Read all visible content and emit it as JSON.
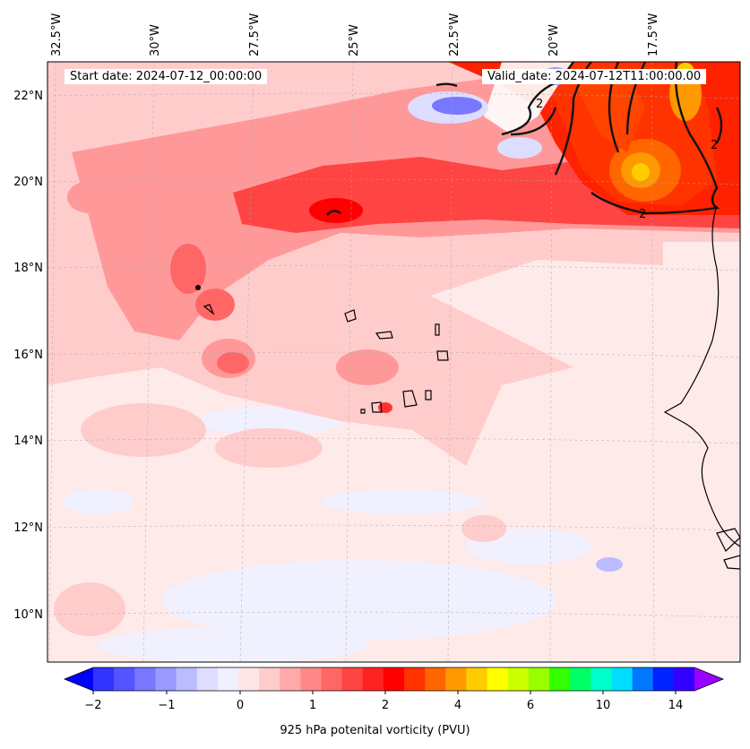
{
  "map": {
    "start_date": "Start date: 2024-07-12_00:00:00",
    "valid_date": "Valid_date: 2024-07-12T11:00:00.00",
    "lon_labels": [
      "32.5°W",
      "30°W",
      "27.5°W",
      "25°W",
      "22.5°W",
      "20°W",
      "17.5°W"
    ],
    "lat_labels": [
      "22°N",
      "20°N",
      "18°N",
      "16°N",
      "14°N",
      "12°N",
      "10°N"
    ],
    "contour_label": "2",
    "colorbar": {
      "title": "925 hPa potenital vorticity (PVU)",
      "ticks": [
        "−2",
        "−1",
        "0",
        "1",
        "2",
        "4",
        "6",
        "10",
        "14"
      ],
      "colors": [
        "#0000ff",
        "#3333ff",
        "#5555ff",
        "#7777ff",
        "#9999ff",
        "#bbbbff",
        "#ddddff",
        "#f0f0ff",
        "#ffe6e6",
        "#ffcccc",
        "#ffaaaa",
        "#ff8888",
        "#ff6666",
        "#ff4444",
        "#ff2222",
        "#ff0000",
        "#ff3300",
        "#ff6600",
        "#ff9900",
        "#ffcc00",
        "#ffff00",
        "#ccff00",
        "#99ff00",
        "#33ff00",
        "#00ff66",
        "#00ffcc",
        "#00ddff",
        "#0077ff",
        "#0022ff",
        "#3300ff",
        "#9900ff"
      ]
    }
  }
}
